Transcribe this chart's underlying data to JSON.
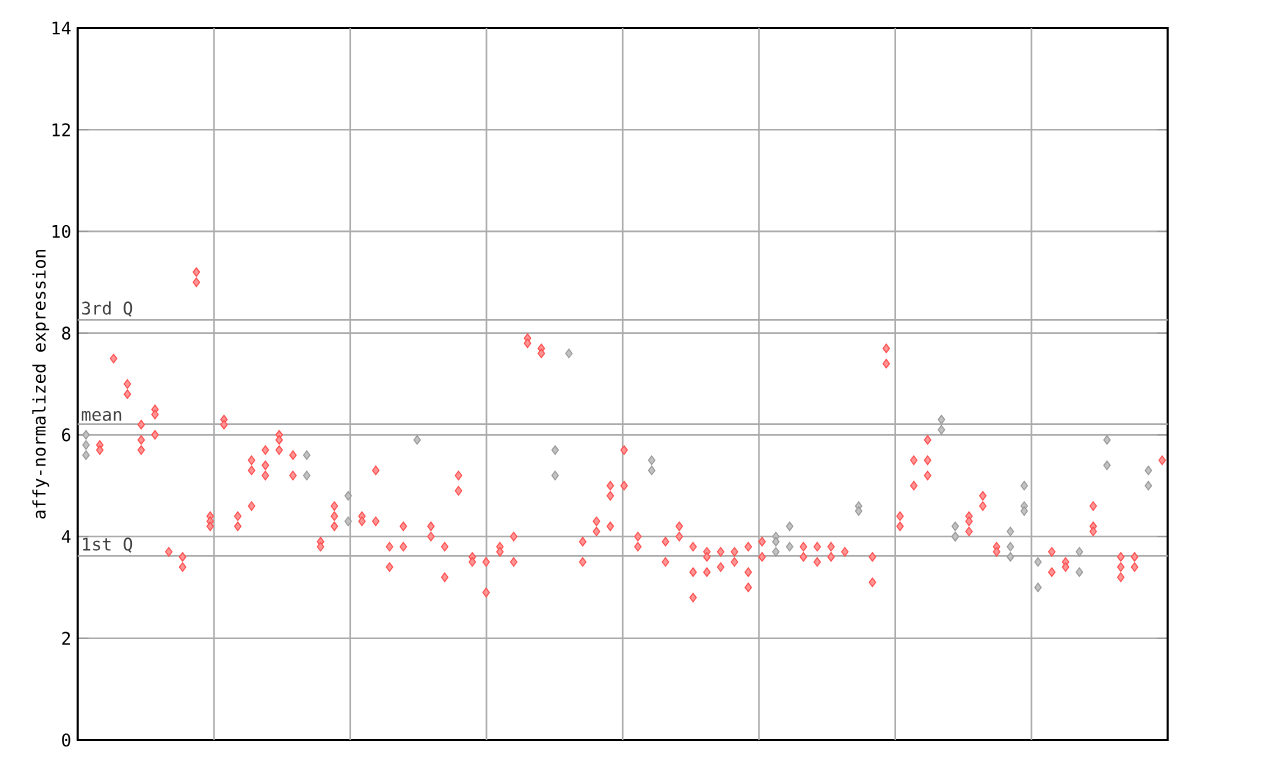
{
  "chart_data": {
    "type": "scatter",
    "ylabel": "affy-normalized expression",
    "ylim": [
      0,
      14
    ],
    "categories": [
      null,
      null,
      null,
      null,
      null,
      null,
      null,
      null,
      null,
      null,
      null,
      null,
      null,
      null,
      null,
      null,
      null,
      null,
      null,
      null,
      null,
      null,
      null,
      null,
      null,
      null,
      null,
      null,
      null,
      null,
      null,
      null,
      null,
      null,
      null,
      null,
      null,
      null,
      null,
      null,
      null,
      null,
      null,
      null,
      null,
      null,
      null,
      null,
      null,
      null,
      null,
      null,
      null,
      null,
      null,
      null,
      null,
      null,
      null,
      null,
      null,
      null,
      null,
      null,
      null,
      null,
      null,
      null,
      null,
      null,
      null,
      null,
      null,
      null,
      null,
      null,
      null,
      null,
      null
    ],
    "yticks": [
      0,
      2,
      4,
      6,
      8,
      10,
      12,
      14
    ],
    "tick_labels": "y",
    "grid": true,
    "marker": "diamond",
    "ref_lines": [
      {
        "axis": "y",
        "value": 8.26,
        "label": "3rd Q",
        "color": "#aaaaaa"
      },
      {
        "axis": "y",
        "value": 6.21,
        "label": "mean",
        "color": "#aaaaaa"
      },
      {
        "axis": "y",
        "value": 3.62,
        "label": "1st Q",
        "color": "#aaaaaa"
      }
    ],
    "series": [
      {
        "values": [
          6.0,
          5.8,
          7.5,
          7.0,
          6.2,
          6.5,
          3.7,
          3.6,
          9.2,
          4.4,
          6.3,
          4.4,
          5.5,
          5.7,
          6.0,
          5.6,
          5.6,
          3.9,
          4.6,
          4.8,
          4.4,
          5.3,
          3.8,
          4.2,
          5.9,
          4.2,
          3.8,
          5.2,
          3.6,
          3.5,
          3.8,
          4.0,
          7.9,
          7.7,
          5.7,
          7.6,
          3.9,
          4.3,
          5.0,
          5.7,
          4.0,
          5.5,
          3.9,
          4.2,
          3.8,
          3.7,
          3.7,
          3.7,
          3.8,
          3.9,
          4.0,
          4.2,
          3.8,
          3.8,
          3.8,
          3.7,
          4.6,
          3.6,
          7.7,
          4.4,
          5.5,
          5.9,
          6.3,
          4.2,
          4.4,
          4.8,
          3.8,
          4.1,
          5.0,
          3.5,
          3.7,
          3.5,
          3.7,
          4.6,
          5.9,
          3.6,
          3.6,
          5.3,
          5.5
        ],
        "colors": [
          "#999999",
          "#ff4c4c",
          "#ff4c4c",
          "#ff4c4c",
          "#ff4c4c",
          "#ff4c4c",
          "#ff4c4c",
          "#ff4c4c",
          "#ff4c4c",
          "#ff4c4c",
          "#ff4c4c",
          "#ff4c4c",
          "#ff4c4c",
          "#ff4c4c",
          "#ff4c4c",
          "#ff4c4c",
          "#999999",
          "#ff4c4c",
          "#ff4c4c",
          "#999999",
          "#ff4c4c",
          "#ff4c4c",
          "#ff4c4c",
          "#ff4c4c",
          "#999999",
          "#ff4c4c",
          "#ff4c4c",
          "#ff4c4c",
          "#ff4c4c",
          "#ff4c4c",
          "#ff4c4c",
          "#ff4c4c",
          "#ff4c4c",
          "#ff4c4c",
          "#999999",
          "#999999",
          "#ff4c4c",
          "#ff4c4c",
          "#ff4c4c",
          "#ff4c4c",
          "#ff4c4c",
          "#999999",
          "#ff4c4c",
          "#ff4c4c",
          "#ff4c4c",
          "#ff4c4c",
          "#ff4c4c",
          "#ff4c4c",
          "#ff4c4c",
          "#ff4c4c",
          "#999999",
          "#999999",
          "#ff4c4c",
          "#ff4c4c",
          "#ff4c4c",
          "#ff4c4c",
          "#999999",
          "#ff4c4c",
          "#ff4c4c",
          "#ff4c4c",
          "#ff4c4c",
          "#ff4c4c",
          "#999999",
          "#999999",
          "#ff4c4c",
          "#ff4c4c",
          "#ff4c4c",
          "#999999",
          "#999999",
          "#999999",
          "#ff4c4c",
          "#ff4c4c",
          "#999999",
          "#ff4c4c",
          "#999999",
          "#ff4c4c",
          "#ff4c4c",
          "#999999",
          "#ff4c4c"
        ]
      },
      {
        "values": [
          5.8,
          5.7,
          null,
          6.8,
          5.9,
          6.4,
          null,
          3.4,
          9.0,
          4.3,
          6.2,
          4.2,
          5.3,
          5.4,
          5.9,
          5.2,
          5.2,
          3.8,
          4.4,
          4.3,
          4.3,
          4.3,
          3.4,
          3.8,
          null,
          4.0,
          3.2,
          4.9,
          3.5,
          2.9,
          3.7,
          3.5,
          7.8,
          7.6,
          5.2,
          null,
          3.5,
          4.1,
          4.8,
          5.0,
          3.8,
          5.3,
          3.5,
          4.0,
          3.3,
          3.6,
          3.4,
          3.5,
          3.3,
          3.6,
          3.9,
          3.8,
          3.6,
          3.5,
          3.6,
          null,
          4.5,
          3.1,
          7.4,
          4.2,
          5.0,
          5.5,
          6.1,
          4.0,
          4.3,
          4.6,
          3.7,
          3.8,
          4.6,
          3.0,
          3.3,
          3.4,
          3.3,
          4.2,
          5.4,
          3.4,
          3.4,
          5.0,
          null
        ],
        "colors": [
          "#999999",
          "#ff4c4c",
          null,
          "#ff4c4c",
          "#ff4c4c",
          "#ff4c4c",
          null,
          "#ff4c4c",
          "#ff4c4c",
          "#ff4c4c",
          "#ff4c4c",
          "#ff4c4c",
          "#ff4c4c",
          "#ff4c4c",
          "#ff4c4c",
          "#ff4c4c",
          "#999999",
          "#ff4c4c",
          "#ff4c4c",
          "#999999",
          "#ff4c4c",
          "#ff4c4c",
          "#ff4c4c",
          "#ff4c4c",
          null,
          "#ff4c4c",
          "#ff4c4c",
          "#ff4c4c",
          "#ff4c4c",
          "#ff4c4c",
          "#ff4c4c",
          "#ff4c4c",
          "#ff4c4c",
          "#ff4c4c",
          "#999999",
          null,
          "#ff4c4c",
          "#ff4c4c",
          "#ff4c4c",
          "#ff4c4c",
          "#ff4c4c",
          "#999999",
          "#ff4c4c",
          "#ff4c4c",
          "#ff4c4c",
          "#ff4c4c",
          "#ff4c4c",
          "#ff4c4c",
          "#ff4c4c",
          "#ff4c4c",
          "#999999",
          "#999999",
          "#ff4c4c",
          "#ff4c4c",
          "#ff4c4c",
          null,
          "#999999",
          "#ff4c4c",
          "#ff4c4c",
          "#ff4c4c",
          "#ff4c4c",
          "#ff4c4c",
          "#999999",
          "#999999",
          "#ff4c4c",
          "#ff4c4c",
          "#ff4c4c",
          "#999999",
          "#999999",
          "#999999",
          "#ff4c4c",
          "#ff4c4c",
          "#999999",
          "#ff4c4c",
          "#999999",
          "#ff4c4c",
          "#ff4c4c",
          "#999999",
          null
        ]
      },
      {
        "values": [
          5.6,
          null,
          null,
          null,
          5.7,
          6.0,
          null,
          null,
          null,
          4.2,
          null,
          null,
          4.6,
          5.2,
          5.7,
          null,
          null,
          null,
          4.2,
          null,
          null,
          null,
          null,
          null,
          null,
          null,
          null,
          null,
          null,
          null,
          null,
          null,
          null,
          null,
          null,
          null,
          null,
          null,
          4.2,
          null,
          null,
          null,
          null,
          null,
          2.8,
          3.3,
          null,
          null,
          3.0,
          null,
          3.7,
          null,
          null,
          null,
          null,
          null,
          null,
          null,
          null,
          null,
          null,
          5.2,
          null,
          4.0,
          4.1,
          null,
          null,
          3.6,
          4.5,
          null,
          null,
          null,
          null,
          4.1,
          null,
          3.2,
          null,
          null,
          null
        ],
        "colors": [
          "#999999",
          null,
          null,
          null,
          "#ff4c4c",
          "#ff4c4c",
          null,
          null,
          null,
          "#ff4c4c",
          null,
          null,
          "#ff4c4c",
          "#ff4c4c",
          "#ff4c4c",
          null,
          null,
          null,
          "#ff4c4c",
          null,
          null,
          null,
          null,
          null,
          null,
          null,
          null,
          null,
          null,
          null,
          null,
          null,
          null,
          null,
          null,
          null,
          null,
          null,
          "#ff4c4c",
          null,
          null,
          null,
          null,
          null,
          "#ff4c4c",
          "#ff4c4c",
          null,
          null,
          "#ff4c4c",
          null,
          "#999999",
          null,
          null,
          null,
          null,
          null,
          null,
          null,
          null,
          null,
          null,
          "#ff4c4c",
          null,
          "#999999",
          "#ff4c4c",
          null,
          null,
          "#999999",
          "#999999",
          null,
          null,
          null,
          null,
          "#ff4c4c",
          null,
          "#ff4c4c",
          null,
          null,
          null
        ]
      }
    ]
  }
}
